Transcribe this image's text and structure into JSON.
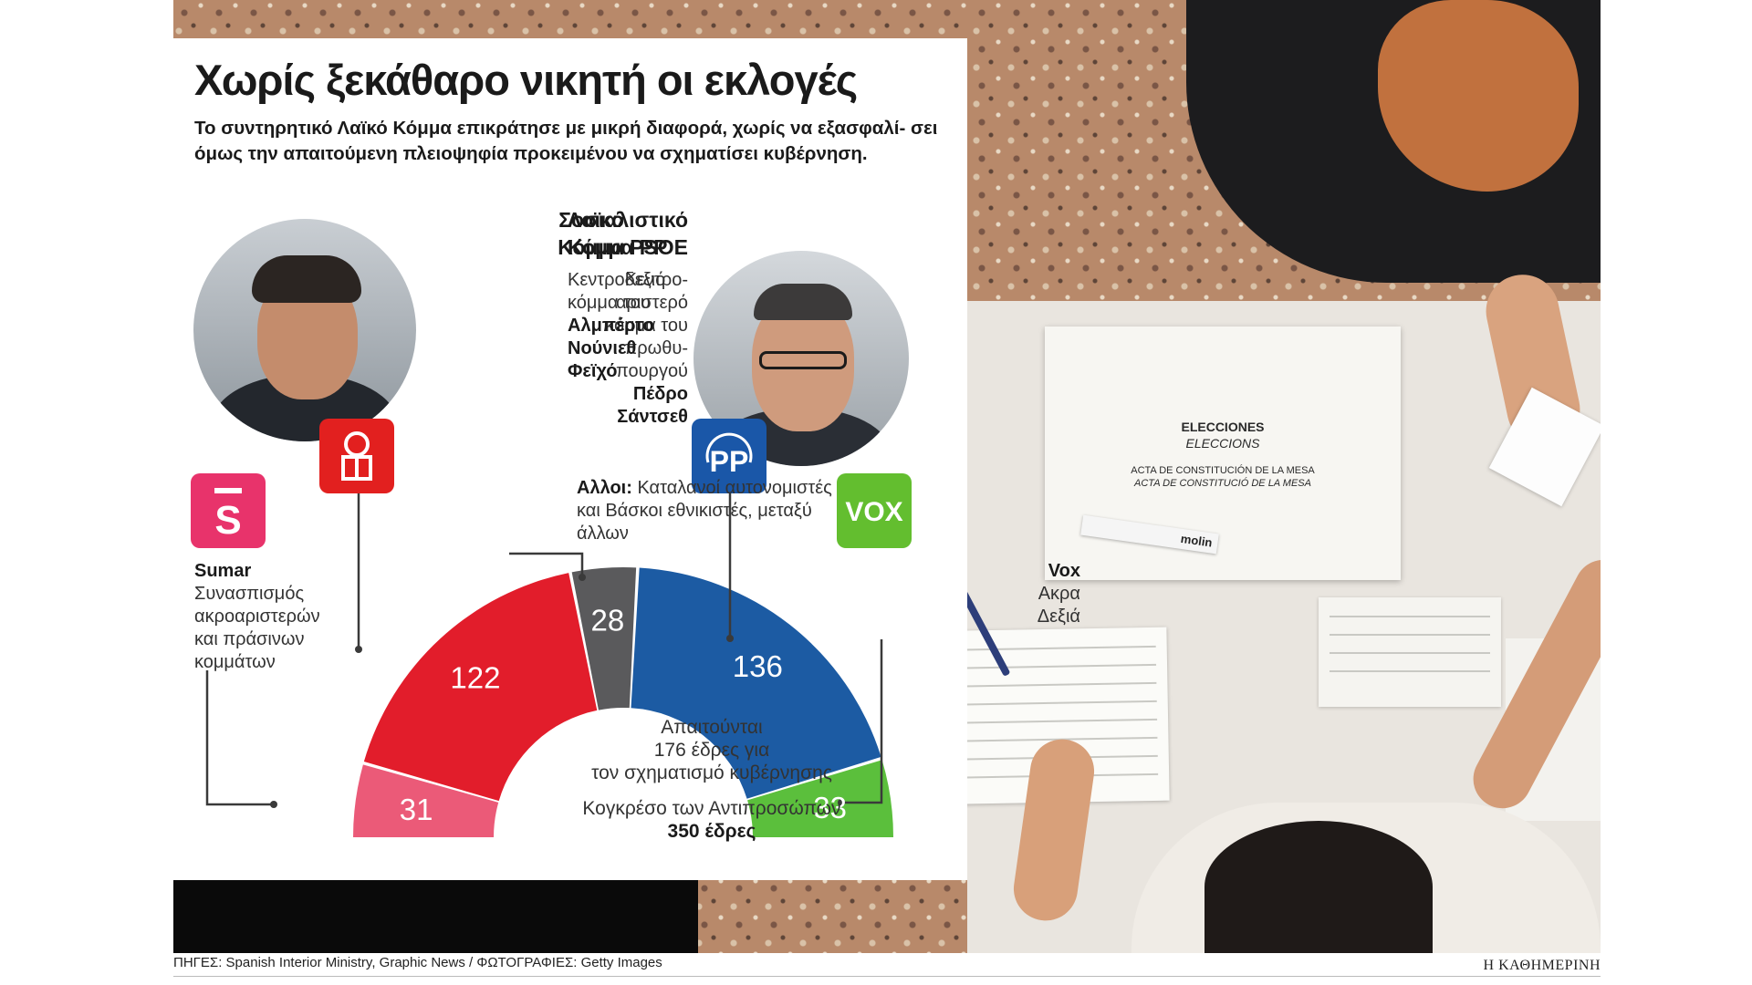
{
  "title": "Χωρίς ξεκάθαρο νικητή οι εκλογές",
  "subtitle": "Το συντηρητικό Λαϊκό Κόμμα επικράτησε με μικρή διαφορά, χωρίς να εξασφαλί- σει όμως την απαιτούμενη πλειοψηφία προκειμένου να σχηματίσει κυβέρνηση.",
  "psoe": {
    "name_line1": "Σοσιαλιστικό",
    "name_line2": "Κόμμα PSOE",
    "desc_lines": [
      "Κεντρο-",
      "αριστερό",
      "κόμμα του",
      "πρωθυ-",
      "πουργού"
    ],
    "leader_lines": [
      "Πέδρο",
      "Σάντσεθ"
    ]
  },
  "pp": {
    "name_line1": "Λαϊκό",
    "name_line2": "Κόμμα PP",
    "desc_lines": [
      "Κεντροδεξιό",
      "κόμμα του"
    ],
    "leader_lines": [
      "Αλμπέρτο",
      "Νούνιεθ",
      "Φεϊχό"
    ]
  },
  "sumar": {
    "name": "Sumar",
    "desc_lines": [
      "Συνασπισμός",
      "ακροαριστερών",
      "και πράσινων",
      "κομμάτων"
    ]
  },
  "vox": {
    "name": "Vox",
    "desc_lines": [
      "Ακρα",
      "Δεξιά"
    ]
  },
  "others": {
    "name": "Αλλοι:",
    "desc_first": " Καταλανοί αυτονομιστές",
    "desc_lines": [
      "και Βάσκοι εθνικιστές, μεταξύ",
      "άλλων"
    ]
  },
  "logos": {
    "pp_text": "PP",
    "vox_text": "VOX",
    "sumar_text": "S"
  },
  "center": {
    "lines": [
      "Απαιτούνται",
      "176 έδρες για",
      "τον σχηματισμό κυβέρνησης"
    ],
    "chamber": "Κογκρέσο των Αντιπροσώπων",
    "total": "350 έδρες"
  },
  "photo_props": {
    "doc_line1": "ELECCIONES",
    "doc_line2": "ELECCIONS",
    "doc_line3": "ACTA DE CONSTITUCIÓN DE LA MESA",
    "doc_line4": "ACTA DE CONSTITUCIÓ DE LA MESA",
    "ruler_text": "molin"
  },
  "footer": {
    "sources": "ΠΗΓΕΣ: Spanish Interior Ministry, Graphic News / ΦΩΤΟΓΡΑΦΙΕΣ: Getty Images",
    "brand": "Η ΚΑΘΗΜΕΡΙΝΗ"
  },
  "colors": {
    "sumar": "#eb5a78",
    "psoe": "#e21d2b",
    "others": "#5a5a5c",
    "pp": "#1c5ba3",
    "vox": "#5bbf3c",
    "sumar_logo": "#e8336b",
    "psoe_logo": "#e2201f",
    "pp_logo": "#1a57a8",
    "vox_logo": "#63be2f"
  },
  "chart_data": {
    "type": "pie",
    "subtype": "parliament-semicircle",
    "categories": [
      "Sumar",
      "PSOE",
      "Αλλοι",
      "PP",
      "Vox"
    ],
    "values": [
      31,
      122,
      28,
      136,
      33
    ],
    "total": 350,
    "majority": 176,
    "series_colors": [
      "#eb5a78",
      "#e21d2b",
      "#5a5a5c",
      "#1c5ba3",
      "#5bbf3c"
    ]
  }
}
